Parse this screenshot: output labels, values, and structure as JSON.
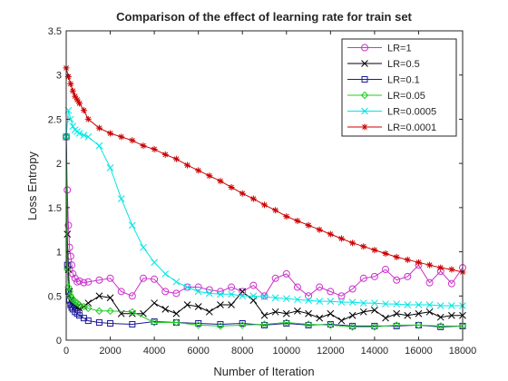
{
  "chart_data": {
    "type": "line",
    "title": "Comparison of the effect of learning rate for train set",
    "xlabel": "Number of Iteration",
    "ylabel": "Loss Entropy",
    "xlim": [
      0,
      18000
    ],
    "ylim": [
      0,
      3.5
    ],
    "xticks": [
      0,
      2000,
      4000,
      6000,
      8000,
      10000,
      12000,
      14000,
      16000,
      18000
    ],
    "yticks": [
      0,
      0.5,
      1,
      1.5,
      2,
      2.5,
      3,
      3.5
    ],
    "xtick_labels": [
      "0",
      "2000",
      "4000",
      "6000",
      "8000",
      "10000",
      "12000",
      "14000",
      "16000",
      "18000"
    ],
    "ytick_labels": [
      "0",
      "0.5",
      "1",
      "1.5",
      "2",
      "2.5",
      "3",
      "3.5"
    ],
    "grid": false,
    "legend_position": "top-right",
    "series": [
      {
        "name": "LR=1",
        "color": "#cc33cc",
        "marker": "circle",
        "x": [
          0,
          50,
          100,
          150,
          200,
          250,
          300,
          400,
          500,
          600,
          800,
          1000,
          1500,
          2000,
          2500,
          3000,
          3500,
          4000,
          4500,
          5000,
          5500,
          6000,
          6500,
          7000,
          7500,
          8000,
          8500,
          9000,
          9500,
          10000,
          10500,
          11000,
          11500,
          12000,
          12500,
          13000,
          13500,
          14000,
          14500,
          15000,
          15500,
          16000,
          16500,
          17000,
          17500,
          18000
        ],
        "y": [
          2.3,
          1.7,
          1.3,
          1.05,
          0.95,
          0.85,
          0.75,
          0.7,
          0.66,
          0.67,
          0.65,
          0.66,
          0.68,
          0.7,
          0.55,
          0.5,
          0.7,
          0.69,
          0.55,
          0.53,
          0.6,
          0.6,
          0.57,
          0.55,
          0.6,
          0.55,
          0.62,
          0.5,
          0.7,
          0.75,
          0.6,
          0.5,
          0.6,
          0.55,
          0.5,
          0.58,
          0.7,
          0.72,
          0.8,
          0.68,
          0.72,
          0.85,
          0.65,
          0.78,
          0.64,
          0.82
        ]
      },
      {
        "name": "LR=0.5",
        "color": "#000000",
        "marker": "x",
        "x": [
          0,
          50,
          100,
          150,
          200,
          250,
          300,
          400,
          500,
          600,
          800,
          1000,
          1500,
          2000,
          2500,
          3000,
          3500,
          4000,
          4500,
          5000,
          5500,
          6000,
          6500,
          7000,
          7500,
          8000,
          8500,
          9000,
          9500,
          10000,
          10500,
          11000,
          11500,
          12000,
          12500,
          13000,
          13500,
          14000,
          14500,
          15000,
          15500,
          16000,
          16500,
          17000,
          17500,
          18000
        ],
        "y": [
          2.3,
          1.2,
          0.8,
          0.55,
          0.45,
          0.42,
          0.4,
          0.38,
          0.37,
          0.36,
          0.38,
          0.42,
          0.5,
          0.48,
          0.3,
          0.3,
          0.3,
          0.42,
          0.35,
          0.3,
          0.4,
          0.38,
          0.32,
          0.4,
          0.4,
          0.55,
          0.45,
          0.28,
          0.32,
          0.3,
          0.33,
          0.3,
          0.25,
          0.3,
          0.22,
          0.28,
          0.32,
          0.34,
          0.25,
          0.3,
          0.28,
          0.3,
          0.32,
          0.26,
          0.28,
          0.28
        ]
      },
      {
        "name": "LR=0.1",
        "color": "#1a1a99",
        "marker": "square",
        "x": [
          0,
          50,
          100,
          150,
          200,
          250,
          300,
          400,
          500,
          600,
          800,
          1000,
          1500,
          2000,
          3000,
          4000,
          5000,
          6000,
          7000,
          8000,
          9000,
          10000,
          11000,
          12000,
          13000,
          14000,
          15000,
          16000,
          17000,
          18000
        ],
        "y": [
          2.3,
          0.85,
          0.55,
          0.45,
          0.4,
          0.37,
          0.35,
          0.32,
          0.3,
          0.28,
          0.25,
          0.22,
          0.2,
          0.19,
          0.18,
          0.21,
          0.2,
          0.19,
          0.18,
          0.19,
          0.17,
          0.19,
          0.17,
          0.18,
          0.16,
          0.16,
          0.16,
          0.17,
          0.15,
          0.16
        ]
      },
      {
        "name": "LR=0.05",
        "color": "#22cc22",
        "marker": "diamond",
        "x": [
          0,
          50,
          100,
          150,
          200,
          250,
          300,
          400,
          500,
          600,
          800,
          1000,
          1500,
          2000,
          3000,
          4000,
          5000,
          6000,
          7000,
          8000,
          9000,
          10000,
          11000,
          12000,
          13000,
          14000,
          15000,
          16000,
          17000,
          18000
        ],
        "y": [
          2.3,
          0.8,
          0.6,
          0.55,
          0.5,
          0.48,
          0.46,
          0.44,
          0.42,
          0.4,
          0.38,
          0.36,
          0.33,
          0.33,
          0.32,
          0.2,
          0.2,
          0.17,
          0.16,
          0.17,
          0.18,
          0.2,
          0.18,
          0.17,
          0.15,
          0.15,
          0.17,
          0.17,
          0.16,
          0.16
        ]
      },
      {
        "name": "LR=0.0005",
        "color": "#00e5e5",
        "marker": "x",
        "x": [
          0,
          100,
          200,
          300,
          400,
          500,
          600,
          800,
          1000,
          1500,
          2000,
          2500,
          3000,
          3500,
          4000,
          4500,
          5000,
          5500,
          6000,
          6500,
          7000,
          7500,
          8000,
          8500,
          9000,
          9500,
          10000,
          10500,
          11000,
          11500,
          12000,
          12500,
          13000,
          13500,
          14000,
          14500,
          15000,
          15500,
          16000,
          16500,
          17000,
          17500,
          18000
        ],
        "y": [
          2.3,
          2.6,
          2.5,
          2.42,
          2.38,
          2.36,
          2.34,
          2.32,
          2.3,
          2.2,
          1.95,
          1.6,
          1.3,
          1.05,
          0.88,
          0.75,
          0.66,
          0.6,
          0.55,
          0.53,
          0.52,
          0.52,
          0.5,
          0.5,
          0.49,
          0.48,
          0.47,
          0.46,
          0.45,
          0.44,
          0.44,
          0.43,
          0.43,
          0.42,
          0.42,
          0.41,
          0.41,
          0.4,
          0.4,
          0.4,
          0.39,
          0.39,
          0.39
        ]
      },
      {
        "name": "LR=0.0001",
        "color": "#cc0000",
        "marker": "star",
        "x": [
          0,
          100,
          200,
          300,
          400,
          500,
          600,
          800,
          1000,
          1500,
          2000,
          2500,
          3000,
          3500,
          4000,
          4500,
          5000,
          5500,
          6000,
          6500,
          7000,
          7500,
          8000,
          8500,
          9000,
          9500,
          10000,
          10500,
          11000,
          11500,
          12000,
          12500,
          13000,
          13500,
          14000,
          14500,
          15000,
          15500,
          16000,
          16500,
          17000,
          17500,
          18000
        ],
        "y": [
          3.08,
          2.98,
          2.9,
          2.82,
          2.76,
          2.72,
          2.68,
          2.6,
          2.5,
          2.4,
          2.34,
          2.3,
          2.26,
          2.2,
          2.16,
          2.1,
          2.05,
          1.98,
          1.92,
          1.86,
          1.8,
          1.73,
          1.66,
          1.6,
          1.53,
          1.47,
          1.4,
          1.35,
          1.3,
          1.25,
          1.2,
          1.15,
          1.1,
          1.06,
          1.02,
          0.98,
          0.94,
          0.91,
          0.88,
          0.85,
          0.82,
          0.8,
          0.77
        ]
      }
    ]
  }
}
